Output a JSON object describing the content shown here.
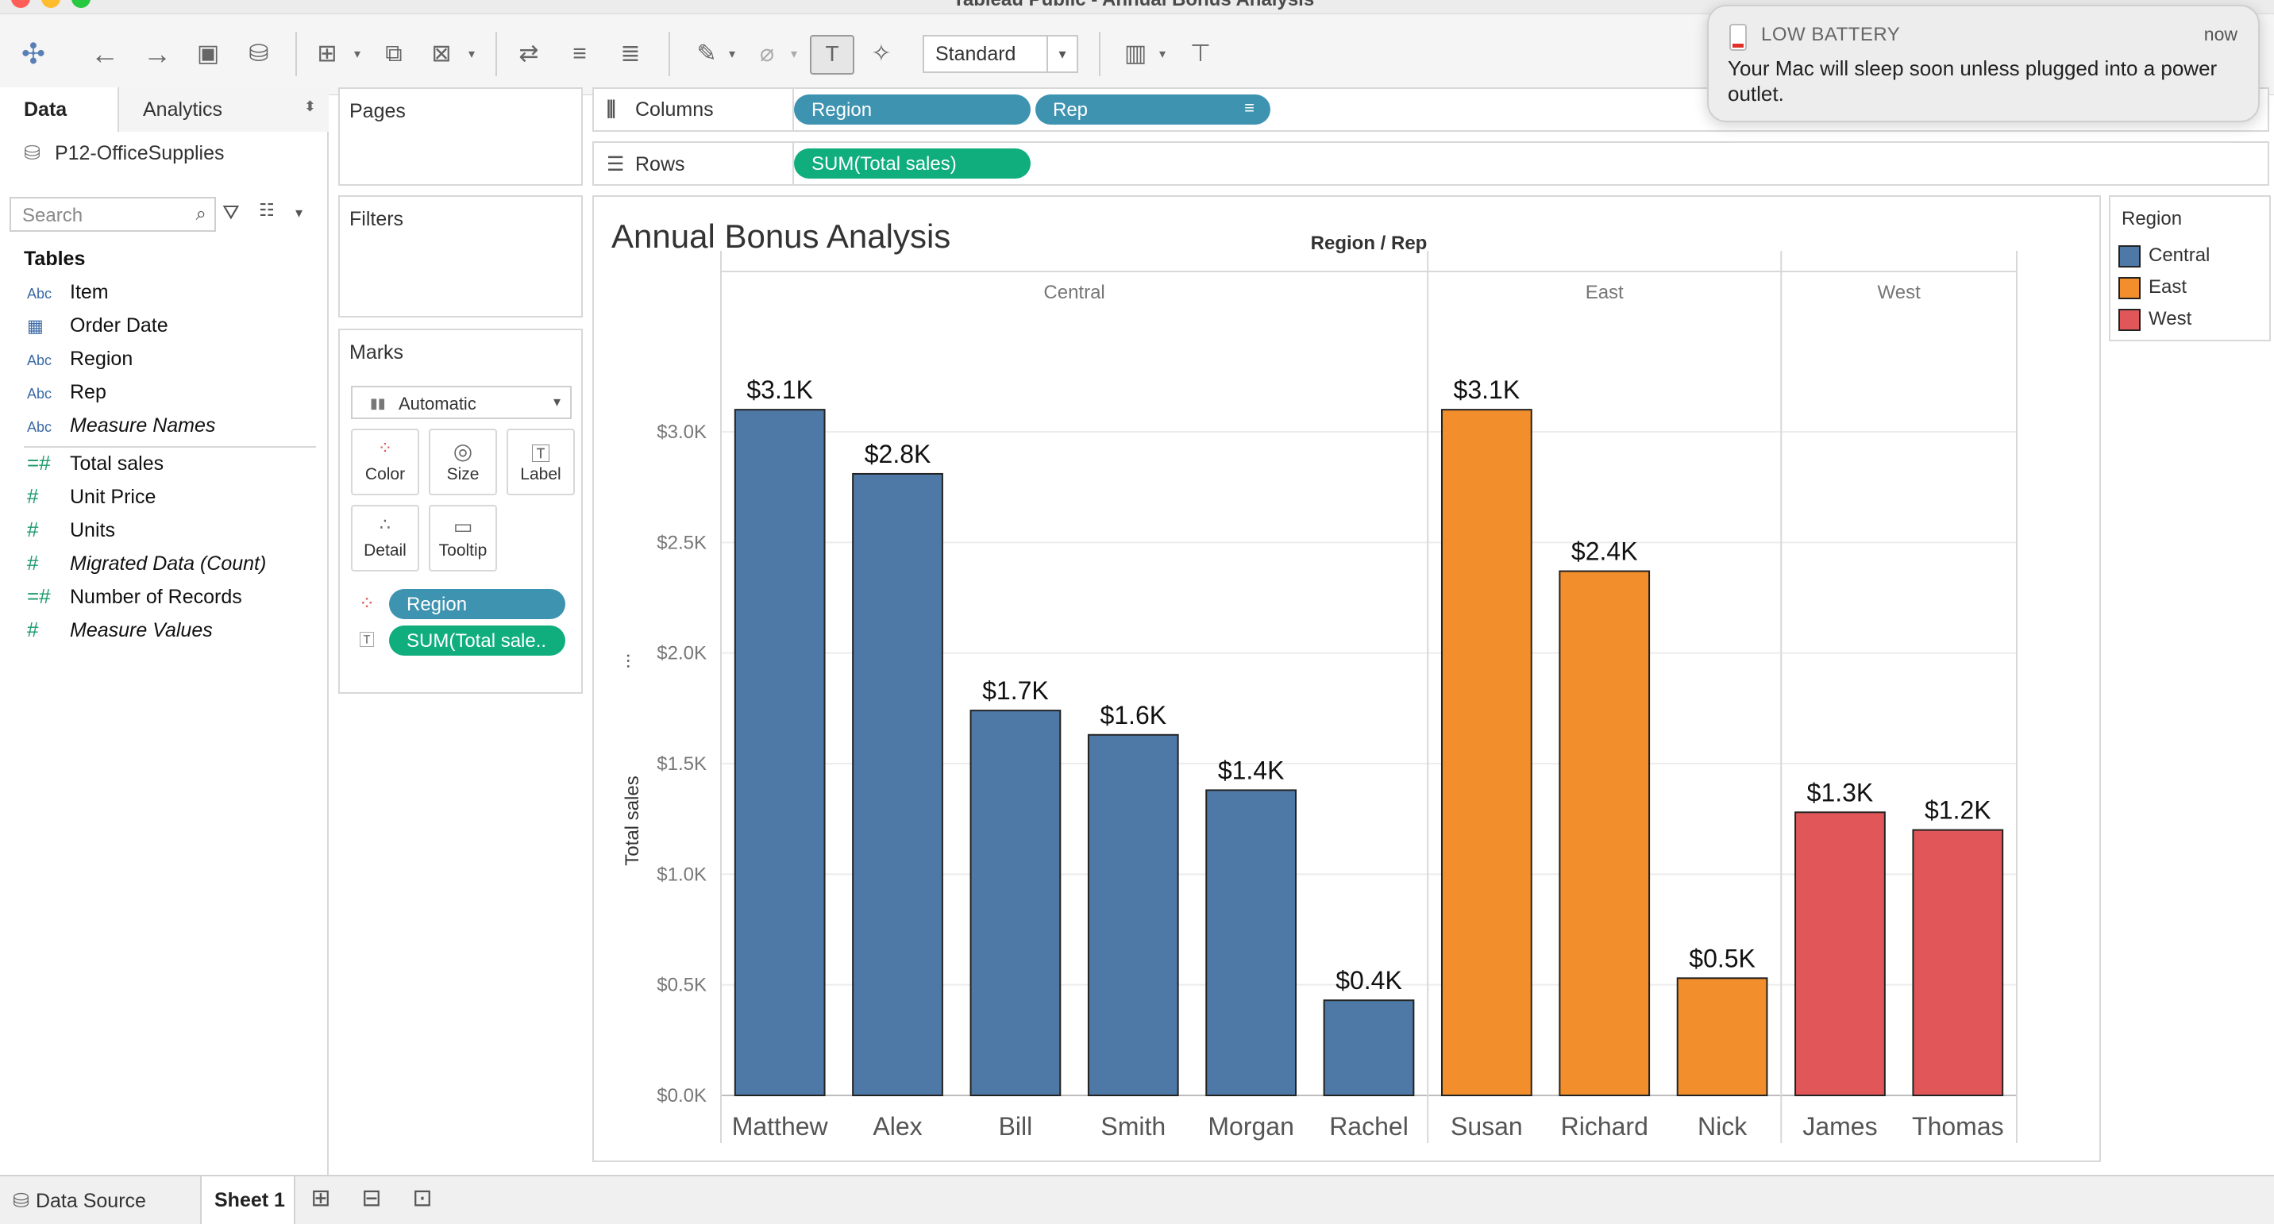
{
  "window": {
    "title": "Tableau Public - Annual Bonus Analysis"
  },
  "toolbar": {
    "fit_value": "Standard"
  },
  "data_pane": {
    "tab_data": "Data",
    "tab_analytics": "Analytics",
    "datasource": "P12-OfficeSupplies",
    "search_placeholder": "Search",
    "tables_heading": "Tables",
    "fields": [
      {
        "type": "Abc",
        "name": "Item"
      },
      {
        "type": "date",
        "name": "Order Date"
      },
      {
        "type": "Abc",
        "name": "Region"
      },
      {
        "type": "Abc",
        "name": "Rep"
      },
      {
        "type": "Abc",
        "name": "Measure Names"
      },
      {
        "type": "=#",
        "name": "Total sales"
      },
      {
        "type": "#",
        "name": "Unit Price"
      },
      {
        "type": "#",
        "name": "Units"
      },
      {
        "type": "#",
        "name": "Migrated Data (Count)"
      },
      {
        "type": "=#",
        "name": "Number of Records"
      },
      {
        "type": "#",
        "name": "Measure Values"
      }
    ]
  },
  "shelves": {
    "pages_title": "Pages",
    "filters_title": "Filters",
    "marks_title": "Marks",
    "marks_type": "Automatic",
    "marks_buttons": [
      "Color",
      "Size",
      "Label",
      "Detail",
      "Tooltip"
    ],
    "marks_pills": [
      "Region",
      "SUM(Total sale.."
    ],
    "columns_label": "Columns",
    "rows_label": "Rows",
    "columns_pills": [
      "Region",
      "Rep"
    ],
    "rows_pills": [
      "SUM(Total sales)"
    ]
  },
  "view": {
    "sheet_title": "Annual Bonus Analysis",
    "header_title": "Region / Rep",
    "y_axis_label": "Total sales"
  },
  "legend": {
    "title": "Region",
    "items": [
      {
        "label": "Central",
        "color": "#4e79a7"
      },
      {
        "label": "East",
        "color": "#f28e2b"
      },
      {
        "label": "West",
        "color": "#e15759"
      }
    ]
  },
  "bottom": {
    "datasource_tab": "Data Source",
    "sheet_tab": "Sheet 1"
  },
  "notification": {
    "title": "LOW BATTERY",
    "time": "now",
    "body": "Your Mac will sleep soon unless plugged into a power outlet."
  },
  "chart_data": {
    "type": "bar",
    "title": "Annual Bonus Analysis",
    "ylabel": "Total sales",
    "ylim": [
      0,
      3500
    ],
    "yticks": [
      0,
      500,
      1000,
      1500,
      2000,
      2500,
      3000
    ],
    "ytick_labels": [
      "$0.0K",
      "$0.5K",
      "$1.0K",
      "$1.5K",
      "$2.0K",
      "$2.5K",
      "$3.0K"
    ],
    "groups": [
      {
        "region": "Central",
        "color": "#4e79a7",
        "reps": [
          "Matthew",
          "Alex",
          "Bill",
          "Smith",
          "Morgan",
          "Rachel"
        ],
        "values": [
          3100,
          2810,
          1740,
          1630,
          1380,
          430
        ],
        "labels": [
          "$3.1K",
          "$2.8K",
          "$1.7K",
          "$1.6K",
          "$1.4K",
          "$0.4K"
        ]
      },
      {
        "region": "East",
        "color": "#f28e2b",
        "reps": [
          "Susan",
          "Richard",
          "Nick"
        ],
        "values": [
          3100,
          2370,
          530
        ],
        "labels": [
          "$3.1K",
          "$2.4K",
          "$0.5K"
        ]
      },
      {
        "region": "West",
        "color": "#e15759",
        "reps": [
          "James",
          "Thomas"
        ],
        "values": [
          1280,
          1200
        ],
        "labels": [
          "$1.3K",
          "$1.2K"
        ]
      }
    ],
    "grid": true
  }
}
